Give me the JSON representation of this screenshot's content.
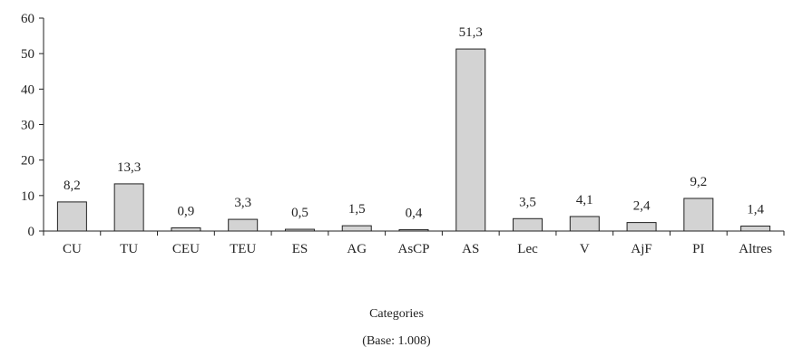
{
  "chart_data": {
    "type": "bar",
    "categories": [
      "CU",
      "TU",
      "CEU",
      "TEU",
      "ES",
      "AG",
      "AsCP",
      "AS",
      "Lec",
      "V",
      "AjF",
      "PI",
      "Altres"
    ],
    "values": [
      8.2,
      13.3,
      0.9,
      3.3,
      0.5,
      1.5,
      0.4,
      51.3,
      3.5,
      4.1,
      2.4,
      9.2,
      1.4
    ],
    "data_labels": [
      "8,2",
      "13,3",
      "0,9",
      "3,3",
      "0,5",
      "1,5",
      "0,4",
      "51,3",
      "3,5",
      "4,1",
      "2,4",
      "9,2",
      "1,4"
    ],
    "ylim": [
      0,
      60
    ],
    "yticks": [
      0,
      10,
      20,
      30,
      40,
      50,
      60
    ],
    "xlabel": "Categories",
    "note": "(Base: 1.008)",
    "bar_color": "#d3d3d3",
    "bar_edge_color": "#222222",
    "grid": false,
    "legend": "none"
  }
}
